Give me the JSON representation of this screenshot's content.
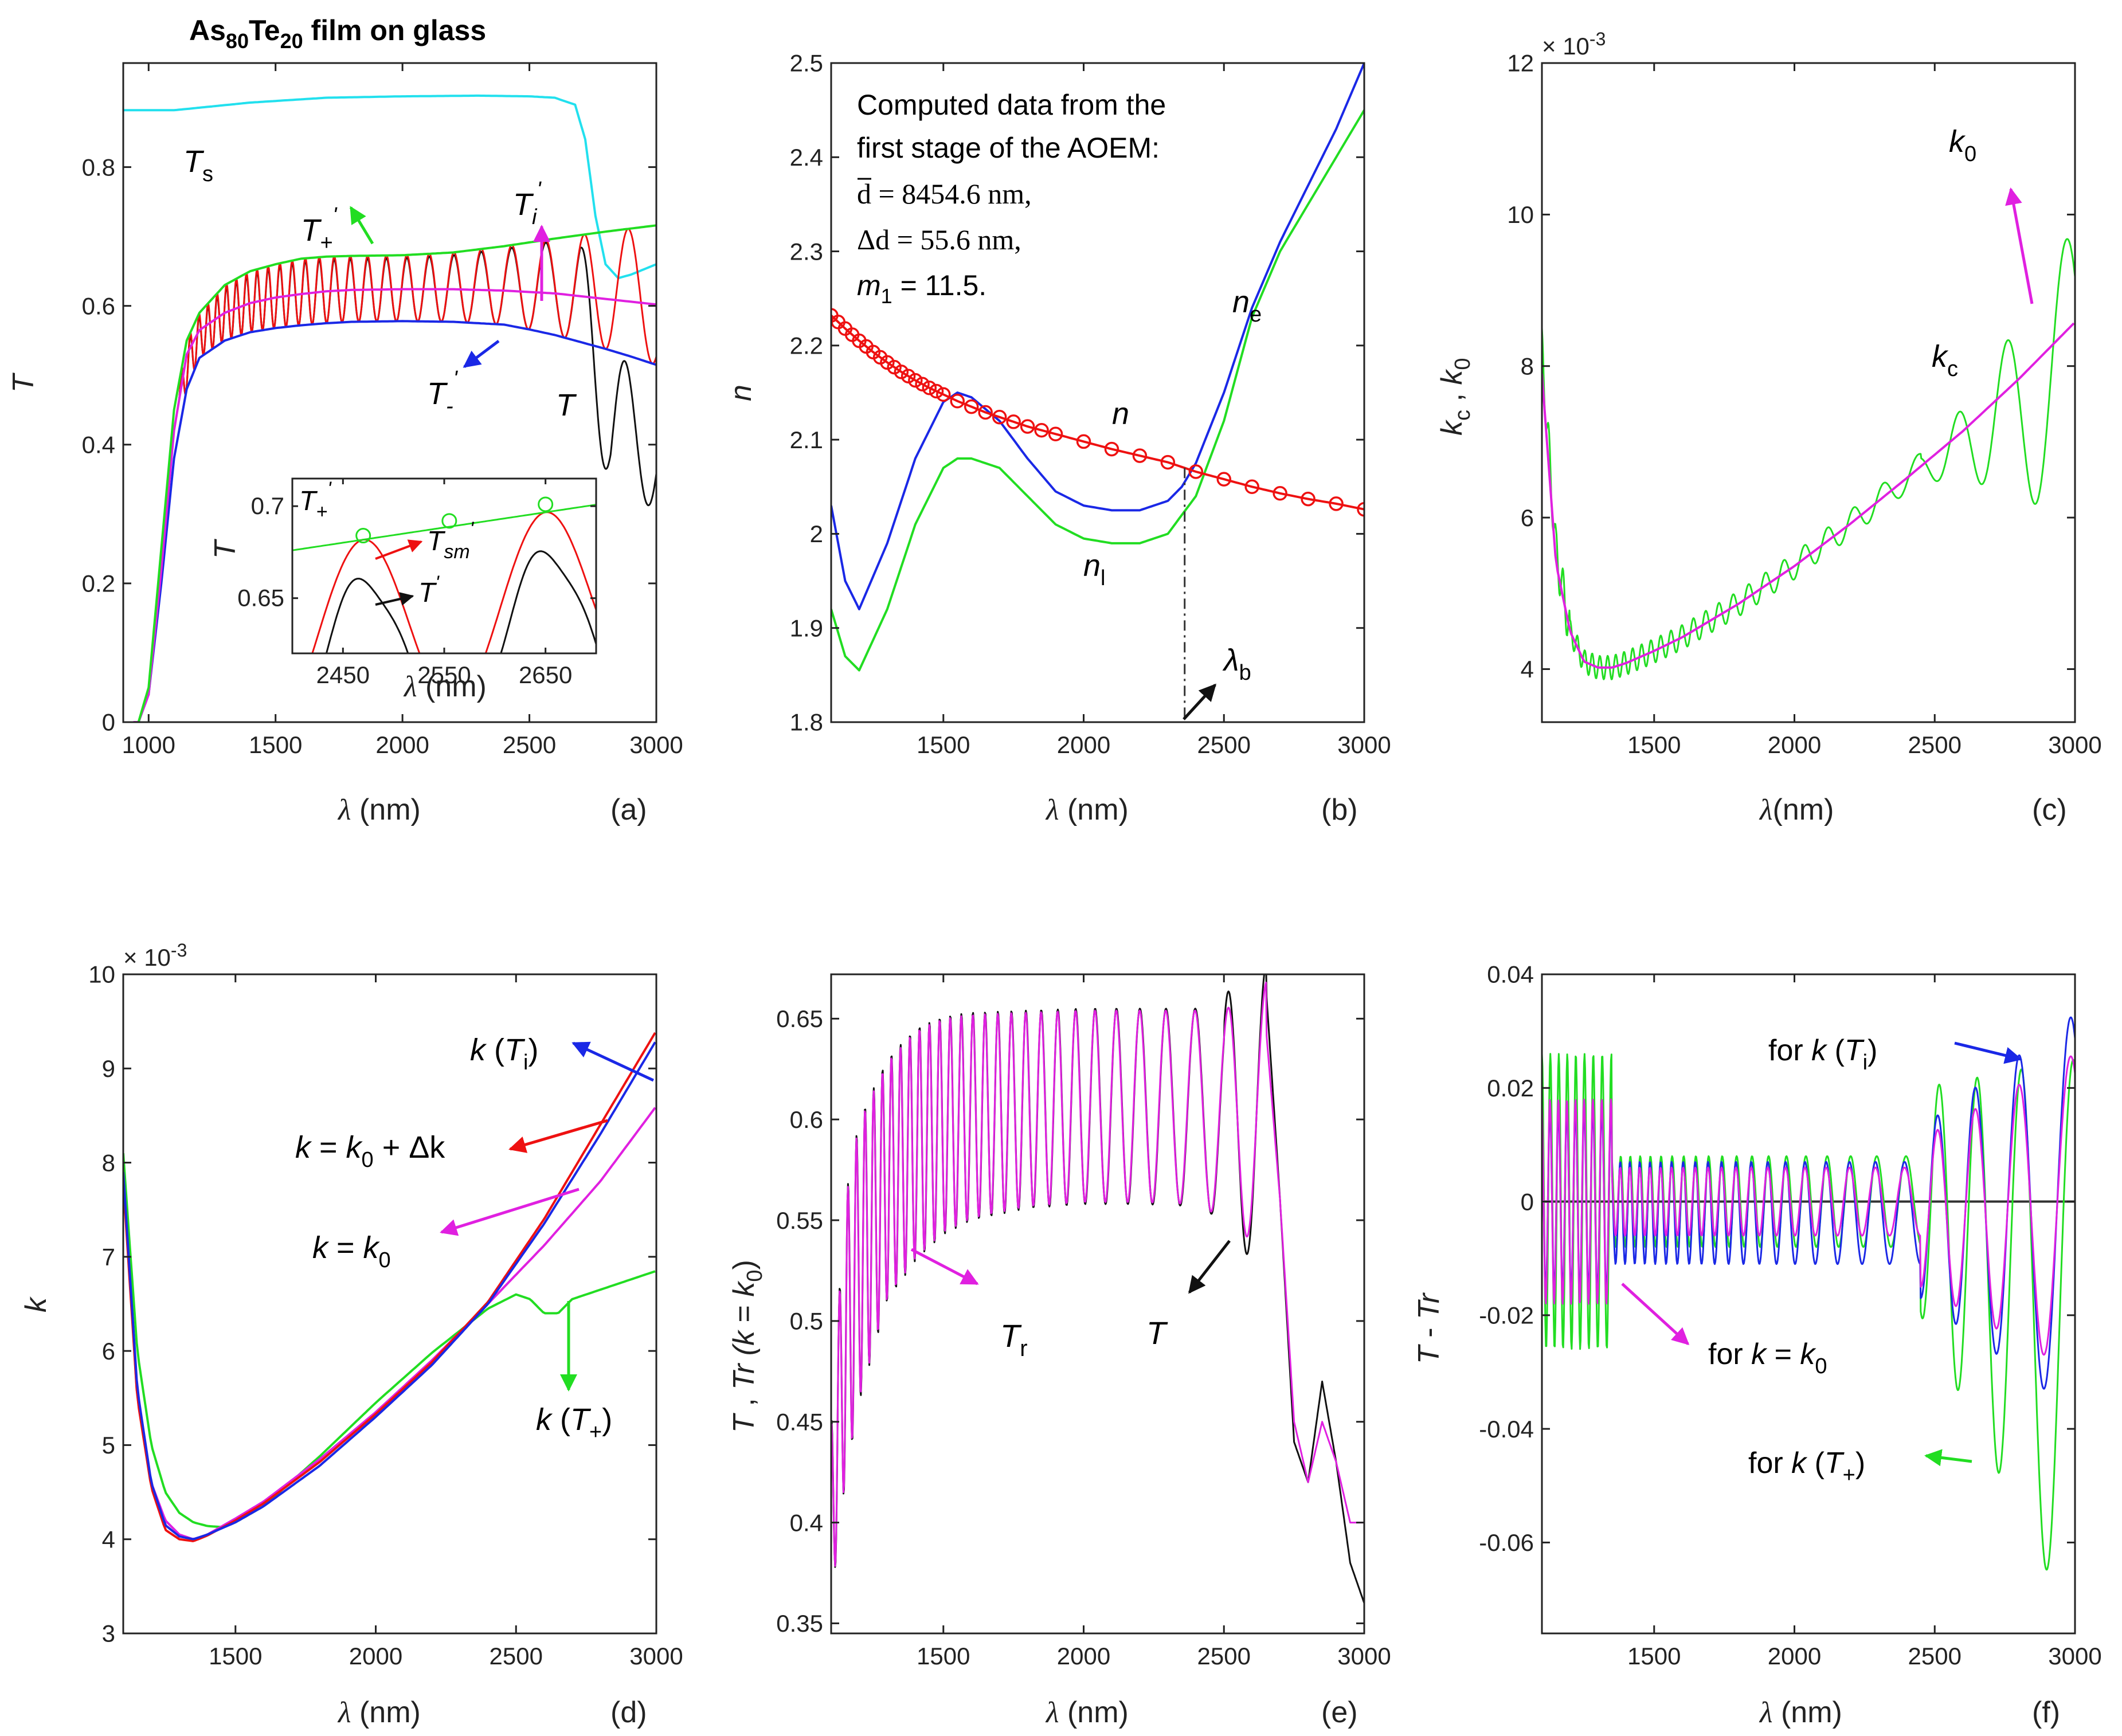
{
  "figure_title": "As80Te20 film on glass",
  "figure_title_parts": {
    "el1": "As",
    "sub1": "80",
    "el2": "Te",
    "sub2": "20",
    "rest": " film on glass"
  },
  "colors": {
    "cyan": "#22e0ee",
    "green": "#22dd22",
    "red": "#ee1111",
    "black": "#111111",
    "blue": "#1a28e6",
    "magenta": "#e020e0",
    "dashdot": "#333333"
  },
  "chart_data": [
    {
      "id": "a",
      "type": "line",
      "panel_label": "(a)",
      "xlabel": "λ (nm)",
      "ylabel": "T",
      "xlim": [
        900,
        3000
      ],
      "ylim": [
        0,
        0.95
      ],
      "xticks": [
        1000,
        1500,
        2000,
        2500,
        3000
      ],
      "yticks": [
        0,
        0.2,
        0.4,
        0.6,
        0.8
      ],
      "ytick_labels": [
        "0",
        "0.2",
        "0.4",
        "0.6",
        "0.8"
      ],
      "series": [
        {
          "name": "Ts (substrate)",
          "color": "cyan",
          "x": [
            900,
            1100,
            1400,
            1700,
            2000,
            2300,
            2500,
            2600,
            2680,
            2720,
            2760,
            2800,
            2850,
            2900,
            3000
          ],
          "y": [
            0.882,
            0.882,
            0.893,
            0.9,
            0.902,
            0.903,
            0.902,
            0.9,
            0.89,
            0.84,
            0.73,
            0.66,
            0.64,
            0.645,
            0.66
          ]
        },
        {
          "name": "T+'",
          "color": "green",
          "x": [
            960,
            1000,
            1050,
            1100,
            1150,
            1200,
            1300,
            1400,
            1500,
            1600,
            1700,
            1800,
            2000,
            2200,
            2400,
            2600,
            2800,
            3000
          ],
          "y": [
            0,
            0.05,
            0.25,
            0.45,
            0.55,
            0.59,
            0.63,
            0.65,
            0.66,
            0.668,
            0.671,
            0.672,
            0.673,
            0.677,
            0.686,
            0.697,
            0.707,
            0.716
          ]
        },
        {
          "name": "Ti'",
          "color": "magenta",
          "x": [
            940,
            960,
            1000,
            1050,
            1100,
            1150,
            1200,
            1300,
            1400,
            1500,
            1600,
            1700,
            1800,
            2000,
            2200,
            2400,
            2600,
            2800,
            3000
          ],
          "y": [
            0,
            0,
            0.04,
            0.22,
            0.42,
            0.53,
            0.565,
            0.59,
            0.604,
            0.612,
            0.617,
            0.621,
            0.623,
            0.624,
            0.624,
            0.622,
            0.618,
            0.61,
            0.602
          ]
        },
        {
          "name": "T-'",
          "color": "blue",
          "x": [
            960,
            1000,
            1050,
            1100,
            1150,
            1200,
            1300,
            1400,
            1500,
            1600,
            1700,
            1800,
            2000,
            2200,
            2400,
            2500,
            2600,
            2700,
            2800,
            2900,
            3000
          ],
          "y": [
            0,
            0.04,
            0.2,
            0.38,
            0.48,
            0.525,
            0.55,
            0.562,
            0.568,
            0.572,
            0.575,
            0.577,
            0.578,
            0.577,
            0.573,
            0.566,
            0.558,
            0.548,
            0.538,
            0.527,
            0.515
          ]
        }
      ],
      "oscillating_series": [
        {
          "name": "Tsm",
          "color": "red",
          "x_start": 1130,
          "x_end": 3000,
          "period_start": 34,
          "period_end": 200
        },
        {
          "name": "T (measured)",
          "color": "black",
          "x_start": 1130,
          "x_end": 3000,
          "period_start": 34,
          "period_end": 200
        }
      ],
      "annotations": {
        "Ts": "T",
        "Ts_sub": "s",
        "Tplus": "T",
        "Tplus_sub": "+",
        "Tplus_sup": "'",
        "Ti": "T",
        "Ti_sub": "i",
        "Ti_sup": "'",
        "Tminus": "T",
        "Tminus_sub": "-",
        "Tminus_sup": "'",
        "T": "T"
      },
      "inset": {
        "xlabel": "λ (nm)",
        "ylabel": "T",
        "xlim": [
          2400,
          2700
        ],
        "ylim": [
          0.62,
          0.715
        ],
        "xticks": [
          2450,
          2550,
          2650
        ],
        "yticks": [
          0.65,
          0.7
        ],
        "ytick_labels": [
          "0.65",
          "0.7"
        ],
        "tangent_points": [
          [
            2470,
            0.684
          ],
          [
            2555,
            0.692
          ],
          [
            2650,
            0.701
          ]
        ],
        "labels": {
          "Tplus": "T",
          "Tplus_sub": "+",
          "Tplus_sup": "'",
          "Tsm": "T",
          "Tsm_sub": "sm",
          "Tsm_sup": "'",
          "T": "T",
          "T_sup": "'"
        }
      }
    },
    {
      "id": "b",
      "type": "line",
      "panel_label": "(b)",
      "xlabel": "λ (nm)",
      "ylabel": "n",
      "xlim": [
        1100,
        3000
      ],
      "ylim": [
        1.8,
        2.5
      ],
      "xticks": [
        1500,
        2000,
        2500,
        3000
      ],
      "yticks": [
        1.8,
        1.9,
        2.0,
        2.1,
        2.2,
        2.3,
        2.4,
        2.5
      ],
      "ytick_labels": [
        "1.8",
        "1.9",
        "2",
        "2.1",
        "2.2",
        "2.3",
        "2.4",
        "2.5"
      ],
      "series": [
        {
          "name": "n",
          "color": "red",
          "markers": true,
          "x": [
            1100,
            1150,
            1200,
            1250,
            1300,
            1350,
            1400,
            1450,
            1500,
            1550,
            1600,
            1650,
            1700,
            1750,
            1800,
            1850,
            1900,
            2000,
            2100,
            2200,
            2300,
            2400,
            2500,
            2600,
            2700,
            2800,
            2900,
            3000
          ],
          "y": [
            2.232,
            2.218,
            2.205,
            2.193,
            2.182,
            2.172,
            2.163,
            2.155,
            2.148,
            2.141,
            2.135,
            2.129,
            2.124,
            2.119,
            2.114,
            2.11,
            2.106,
            2.098,
            2.09,
            2.083,
            2.076,
            2.066,
            2.058,
            2.05,
            2.043,
            2.037,
            2.032,
            2.026
          ]
        },
        {
          "name": "ne",
          "color": "blue",
          "x": [
            1100,
            1150,
            1200,
            1300,
            1400,
            1500,
            1550,
            1600,
            1700,
            1800,
            1900,
            2000,
            2100,
            2200,
            2300,
            2350,
            2400,
            2500,
            2600,
            2700,
            2800,
            2900,
            3000
          ],
          "y": [
            2.03,
            1.95,
            1.92,
            1.99,
            2.08,
            2.14,
            2.15,
            2.145,
            2.12,
            2.08,
            2.045,
            2.03,
            2.025,
            2.025,
            2.035,
            2.05,
            2.075,
            2.15,
            2.24,
            2.31,
            2.37,
            2.43,
            2.5
          ]
        },
        {
          "name": "nl",
          "color": "green",
          "x": [
            1100,
            1150,
            1200,
            1300,
            1400,
            1500,
            1550,
            1600,
            1700,
            1800,
            1900,
            2000,
            2100,
            2200,
            2300,
            2400,
            2500,
            2600,
            2700,
            2800,
            2900,
            3000
          ],
          "y": [
            1.92,
            1.87,
            1.855,
            1.92,
            2.01,
            2.07,
            2.08,
            2.08,
            2.07,
            2.04,
            2.01,
            1.995,
            1.99,
            1.99,
            2.0,
            2.04,
            2.12,
            2.23,
            2.3,
            2.35,
            2.4,
            2.45
          ]
        }
      ],
      "lambda_b": 2360,
      "text_box": [
        "Computed data from the",
        "first stage of the AOEM:",
        "d̄ = 8454.6 nm,",
        "Δd = 55.6 nm,",
        "m1 = 11.5."
      ],
      "text_box_parts": {
        "dbar_label": "d",
        "dbar_value": " = 8454.6 nm,",
        "delta_d": "Δd = 55.6 nm,",
        "m": "m",
        "m_sub": "1",
        "m_value": " = 11.5."
      },
      "annotations": {
        "n": "n",
        "ne": "n",
        "ne_sub": "e",
        "nl": "n",
        "nl_sub": "l",
        "lambda_b": "λ",
        "lambda_b_sub": "b"
      }
    },
    {
      "id": "c",
      "type": "line",
      "panel_label": "(c)",
      "xlabel": "λ(nm)",
      "ylabel": "kc , k0",
      "ylabel_parts": {
        "k1": "k",
        "s1": "c",
        "sep": " , ",
        "k2": "k",
        "s2": "0"
      },
      "xlim": [
        1100,
        3000
      ],
      "ylim": [
        0.0033,
        0.012
      ],
      "xticks": [
        1500,
        2000,
        2500,
        3000
      ],
      "yticks": [
        0.004,
        0.006,
        0.008,
        0.01,
        0.012
      ],
      "ytick_labels": [
        "4",
        "6",
        "8",
        "10",
        "12"
      ],
      "exponent_label": "× 10-3",
      "exponent_parts": {
        "base": "× 10",
        "exp": "-3"
      },
      "series": [
        {
          "name": "k0",
          "color": "magenta",
          "x": [
            1100,
            1150,
            1200,
            1250,
            1300,
            1350,
            1400,
            1500,
            1600,
            1800,
            2000,
            2200,
            2400,
            2600,
            2800,
            3000
          ],
          "y": [
            0.0079,
            0.0054,
            0.0045,
            0.0041,
            0.00402,
            0.00402,
            0.00408,
            0.00424,
            0.00442,
            0.00486,
            0.00536,
            0.00592,
            0.00652,
            0.00714,
            0.00783,
            0.00858
          ]
        }
      ],
      "oscillating_series": [
        {
          "name": "kc",
          "color": "green",
          "description": "k0 plus oscillating ripple with large peaks near 2550, 2750, 2960 nm"
        }
      ],
      "annotations": {
        "k0": "k",
        "k0_sub": "0",
        "kc": "k",
        "kc_sub": "c"
      }
    },
    {
      "id": "d",
      "type": "line",
      "panel_label": "(d)",
      "xlabel": "λ (nm)",
      "ylabel": "k",
      "xlim": [
        1100,
        3000
      ],
      "ylim": [
        0.003,
        0.01
      ],
      "xticks": [
        1500,
        2000,
        2500,
        3000
      ],
      "yticks": [
        0.003,
        0.004,
        0.005,
        0.006,
        0.007,
        0.008,
        0.009,
        0.01
      ],
      "ytick_labels": [
        "3",
        "4",
        "5",
        "6",
        "7",
        "8",
        "9",
        "10"
      ],
      "exponent_label": "× 10-3",
      "exponent_parts": {
        "base": "× 10",
        "exp": "-3"
      },
      "series": [
        {
          "name": "k(Ti)",
          "color": "blue",
          "x": [
            1100,
            1150,
            1200,
            1250,
            1300,
            1350,
            1400,
            1500,
            1600,
            1800,
            2000,
            2200,
            2400,
            2600,
            2800,
            3000
          ],
          "y": [
            0.0079,
            0.0056,
            0.0046,
            0.00415,
            0.00403,
            0.004,
            0.00405,
            0.00418,
            0.00435,
            0.00478,
            0.0053,
            0.00585,
            0.0065,
            0.00735,
            0.0083,
            0.0093
          ]
        },
        {
          "name": "k = k0 + Δk",
          "color": "red",
          "x": [
            1100,
            1150,
            1200,
            1250,
            1300,
            1350,
            1400,
            1500,
            1600,
            1800,
            2000,
            2200,
            2400,
            2600,
            2800,
            3000
          ],
          "y": [
            0.0078,
            0.0055,
            0.00455,
            0.0041,
            0.004,
            0.00398,
            0.00404,
            0.0042,
            0.00438,
            0.00482,
            0.00533,
            0.00588,
            0.00652,
            0.0074,
            0.0084,
            0.0094
          ]
        },
        {
          "name": "k = k0",
          "color": "magenta",
          "x": [
            1100,
            1150,
            1200,
            1250,
            1300,
            1350,
            1400,
            1500,
            1600,
            1800,
            2000,
            2200,
            2400,
            2600,
            2800,
            3000
          ],
          "y": [
            0.0079,
            0.0055,
            0.0046,
            0.0042,
            0.00405,
            0.004,
            0.00405,
            0.00422,
            0.0044,
            0.00485,
            0.00535,
            0.0059,
            0.0065,
            0.00712,
            0.0078,
            0.0086
          ]
        },
        {
          "name": "k(T+)",
          "color": "green",
          "x": [
            1100,
            1150,
            1200,
            1250,
            1300,
            1350,
            1400,
            1450,
            1500,
            1600,
            1800,
            2000,
            2200,
            2400,
            2500,
            2550,
            2600,
            2650,
            2700,
            2800,
            3000
          ],
          "y": [
            0.0081,
            0.006,
            0.005,
            0.0045,
            0.00428,
            0.00418,
            0.00414,
            0.00413,
            0.00418,
            0.00435,
            0.00488,
            0.00545,
            0.00598,
            0.00645,
            0.0066,
            0.00655,
            0.0064,
            0.0064,
            0.00655,
            0.00665,
            0.00685
          ]
        }
      ],
      "annotations": {
        "kTi": "k (T",
        "kTi_sub": "i",
        "kTi_close": ")",
        "kdk": "k = k",
        "kdk_sub": "0",
        "kdk_rest": " +  Δk",
        "kk0": "k = k",
        "kk0_sub": "0",
        "kTp": "k (T",
        "kTp_sub": "+",
        "kTp_close": ")"
      }
    },
    {
      "id": "e",
      "type": "line",
      "panel_label": "(e)",
      "xlabel": "λ (nm)",
      "ylabel": "T, Tr (k = k0)",
      "ylabel_parts": {
        "a": "T",
        "b": " ,  ",
        "c": "Tr (",
        "d": "k",
        "e": " = ",
        "f": "k",
        "g": "0",
        "h": ")"
      },
      "xlim": [
        1100,
        3000
      ],
      "ylim": [
        0.345,
        0.672
      ],
      "xticks": [
        1500,
        2000,
        2500,
        3000
      ],
      "yticks": [
        0.35,
        0.4,
        0.45,
        0.5,
        0.55,
        0.6,
        0.65
      ],
      "ytick_labels": [
        "0.35",
        "0.4",
        "0.45",
        "0.5",
        "0.55",
        "0.6",
        "0.65"
      ],
      "oscillating_series": [
        {
          "name": "T",
          "color": "black"
        },
        {
          "name": "Tr",
          "color": "magenta"
        }
      ],
      "annotations": {
        "Tr": "T",
        "Tr_sub": "r",
        "T": "T"
      }
    },
    {
      "id": "f",
      "type": "line",
      "panel_label": "(f)",
      "xlabel": "λ (nm)",
      "ylabel": "T - Tr",
      "ylabel_parts": {
        "a": "T",
        "b": " - ",
        "c": "Tr"
      },
      "xlim": [
        1100,
        3000
      ],
      "ylim": [
        -0.076,
        0.04
      ],
      "xticks": [
        1500,
        2000,
        2500,
        3000
      ],
      "yticks": [
        -0.06,
        -0.04,
        -0.02,
        0,
        0.02,
        0.04
      ],
      "ytick_labels": [
        "-0.06",
        "-0.04",
        "-0.02",
        "0",
        "0.02",
        "0.04"
      ],
      "oscillating_series": [
        {
          "name": "for k(Ti)",
          "color": "blue"
        },
        {
          "name": "for k = k0",
          "color": "magenta"
        },
        {
          "name": "for k(T+)",
          "color": "green"
        }
      ],
      "annotations": {
        "fTi": "for  k (T",
        "fTi_sub": "i",
        "fTi_close": ")",
        "fk0": "for  k = k",
        "fk0_sub": "0",
        "fTp": "for  k (T",
        "fTp_sub": "+",
        "fTp_close": ")"
      }
    }
  ]
}
